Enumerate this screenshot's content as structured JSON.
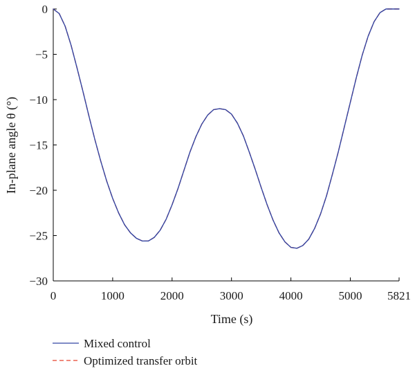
{
  "chart_data": {
    "type": "line",
    "title": "",
    "xlabel": "Time (s)",
    "ylabel": "In-plane angle θ (°)",
    "xlim": [
      0,
      5821
    ],
    "ylim": [
      -30,
      0
    ],
    "x_ticks": [
      0,
      1000,
      2000,
      3000,
      4000,
      5000,
      5821
    ],
    "x_tick_labels": [
      "0",
      "1000",
      "2000",
      "3000",
      "4000",
      "5000",
      "5821"
    ],
    "y_ticks": [
      0,
      -5,
      -10,
      -15,
      -20,
      -25,
      -30
    ],
    "y_tick_labels": [
      "0",
      "−5",
      "−10",
      "−15",
      "−20",
      "−25",
      "−30"
    ],
    "grid": false,
    "legend_position": "bottom-left",
    "series": [
      {
        "name": "Mixed control",
        "color": "#3346a3",
        "style": "solid",
        "x": [
          0,
          100,
          200,
          300,
          400,
          500,
          600,
          700,
          800,
          900,
          1000,
          1100,
          1200,
          1300,
          1400,
          1500,
          1600,
          1700,
          1800,
          1900,
          2000,
          2100,
          2200,
          2300,
          2400,
          2500,
          2600,
          2700,
          2800,
          2900,
          3000,
          3100,
          3200,
          3300,
          3400,
          3500,
          3600,
          3700,
          3800,
          3900,
          4000,
          4100,
          4200,
          4300,
          4400,
          4500,
          4600,
          4700,
          4800,
          4900,
          5000,
          5100,
          5200,
          5300,
          5400,
          5500,
          5600,
          5700,
          5800,
          5821
        ],
        "y": [
          0,
          -0.5,
          -1.9,
          -4.0,
          -6.5,
          -9.1,
          -11.8,
          -14.4,
          -16.8,
          -19.0,
          -20.9,
          -22.5,
          -23.8,
          -24.7,
          -25.3,
          -25.6,
          -25.6,
          -25.2,
          -24.4,
          -23.2,
          -21.6,
          -19.8,
          -17.8,
          -15.8,
          -14.1,
          -12.7,
          -11.7,
          -11.1,
          -11.0,
          -11.1,
          -11.6,
          -12.6,
          -14.0,
          -15.8,
          -17.7,
          -19.7,
          -21.6,
          -23.3,
          -24.7,
          -25.7,
          -26.3,
          -26.4,
          -26.1,
          -25.4,
          -24.2,
          -22.6,
          -20.6,
          -18.2,
          -15.7,
          -13.0,
          -10.3,
          -7.6,
          -5.1,
          -3.0,
          -1.4,
          -0.4,
          0,
          0,
          0,
          0
        ]
      },
      {
        "name": "Optimized transfer orbit",
        "color": "#e8412c",
        "style": "dashed",
        "x": [
          0,
          100,
          200,
          300,
          400,
          500,
          600,
          700,
          800,
          900,
          1000,
          1100,
          1200,
          1300,
          1400,
          1500,
          1600,
          1700,
          1800,
          1900,
          2000,
          2100,
          2200,
          2300,
          2400,
          2500,
          2600,
          2700,
          2800,
          2900,
          3000,
          3100,
          3200,
          3300,
          3400,
          3500,
          3600,
          3700,
          3800,
          3900,
          4000,
          4100,
          4200,
          4300,
          4400,
          4500,
          4600,
          4700,
          4800,
          4900,
          5000,
          5100,
          5200,
          5300,
          5400,
          5500,
          5600,
          5700,
          5800,
          5821
        ],
        "y": [
          0,
          -0.5,
          -1.9,
          -4.0,
          -6.5,
          -9.1,
          -11.8,
          -14.4,
          -16.8,
          -19.0,
          -20.9,
          -22.5,
          -23.8,
          -24.7,
          -25.3,
          -25.6,
          -25.6,
          -25.2,
          -24.4,
          -23.2,
          -21.6,
          -19.8,
          -17.8,
          -15.8,
          -14.1,
          -12.7,
          -11.7,
          -11.1,
          -11.0,
          -11.1,
          -11.6,
          -12.6,
          -14.0,
          -15.8,
          -17.7,
          -19.7,
          -21.6,
          -23.3,
          -24.7,
          -25.7,
          -26.3,
          -26.4,
          -26.1,
          -25.4,
          -24.2,
          -22.6,
          -20.6,
          -18.2,
          -15.7,
          -13.0,
          -10.3,
          -7.6,
          -5.1,
          -3.0,
          -1.4,
          -0.4,
          0,
          0,
          0,
          0
        ]
      }
    ]
  }
}
